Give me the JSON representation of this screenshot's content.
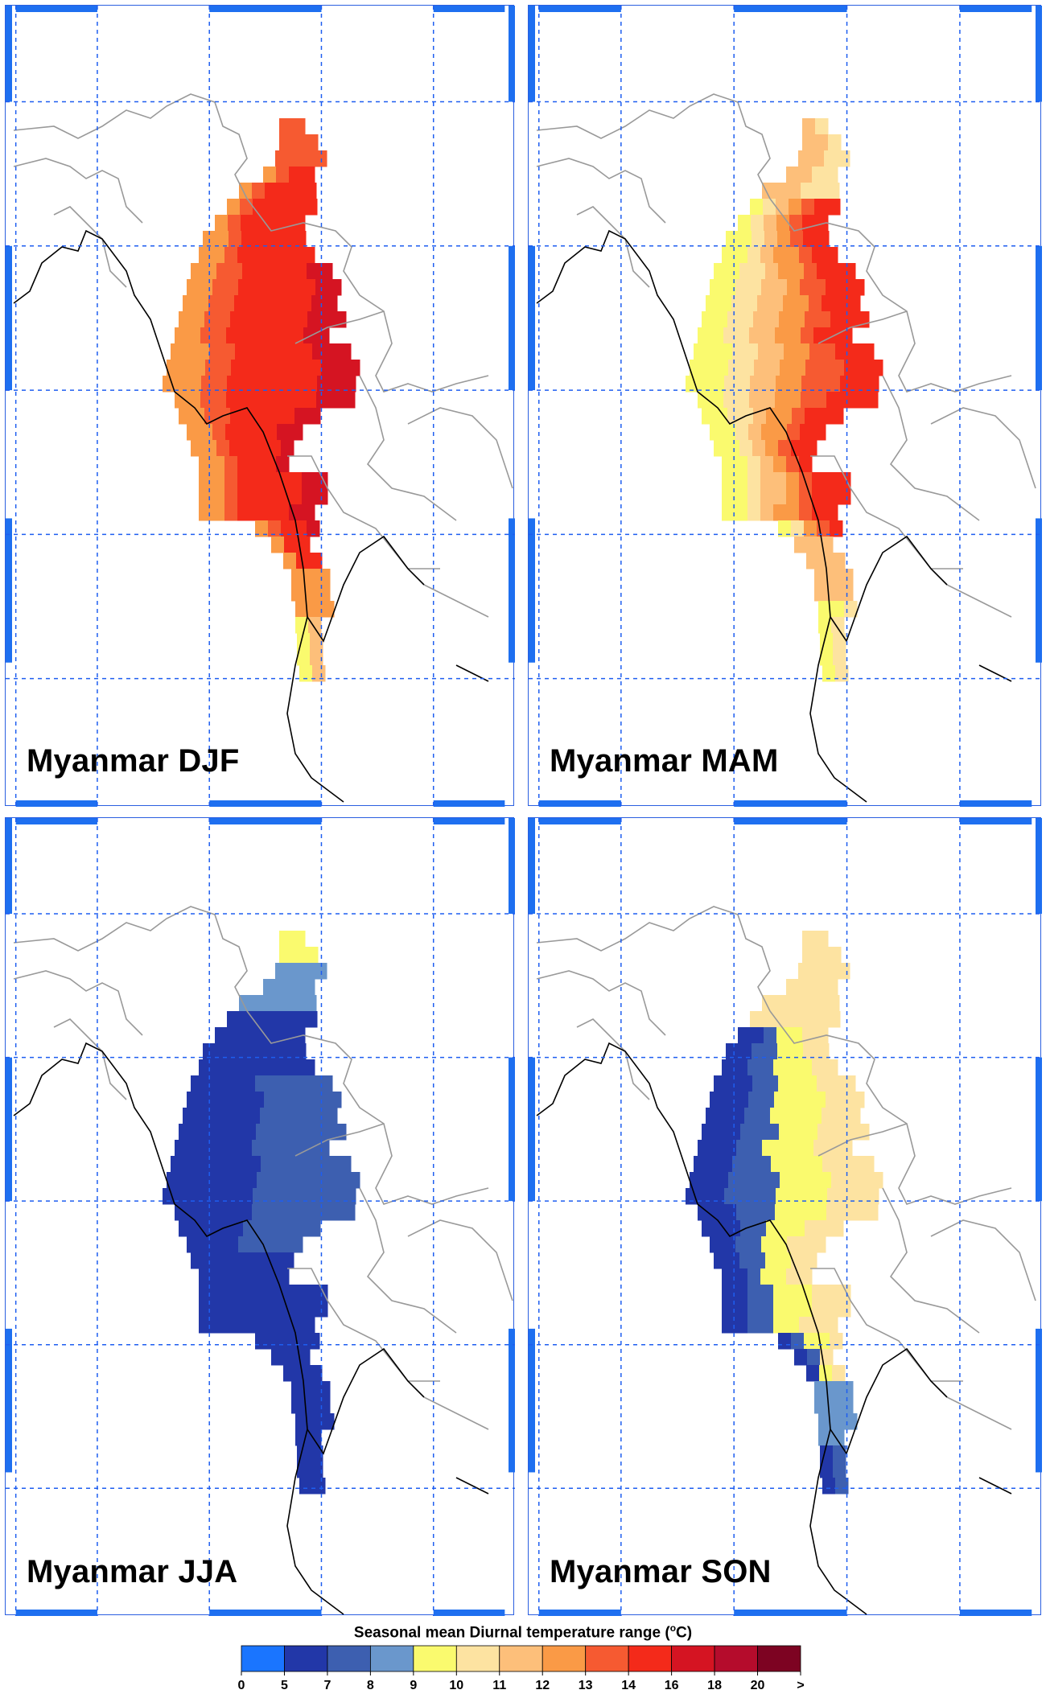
{
  "panels": [
    {
      "id": "djf",
      "label": "Myanmar DJF",
      "scheme": "djf"
    },
    {
      "id": "mam",
      "label": "Myanmar MAM",
      "scheme": "mam"
    },
    {
      "id": "jja",
      "label": "Myanmar JJA",
      "scheme": "jja"
    },
    {
      "id": "son",
      "label": "Myanmar SON",
      "scheme": "son"
    }
  ],
  "legend": {
    "title_prefix": "Seasonal mean Diurnal temperature range (",
    "title_degree": "o",
    "title_suffix": "C)",
    "tick_labels": [
      "0",
      "5",
      "7",
      "8",
      "9",
      "10",
      "11",
      "12",
      "13",
      "14",
      "16",
      "18",
      "20",
      ">"
    ],
    "colors": [
      "#1a75ff",
      "#2237a8",
      "#3d5fb0",
      "#6a97cc",
      "#fafa6e",
      "#fde3a1",
      "#fdbf7a",
      "#fa9a46",
      "#f65a31",
      "#f42a1a",
      "#d51422",
      "#b50c2c",
      "#7d0322"
    ]
  },
  "colors": {
    "grid": "#1e5ef0",
    "frame": "#1e6ff0",
    "country_border": "#999999",
    "coastline": "#000000"
  }
}
